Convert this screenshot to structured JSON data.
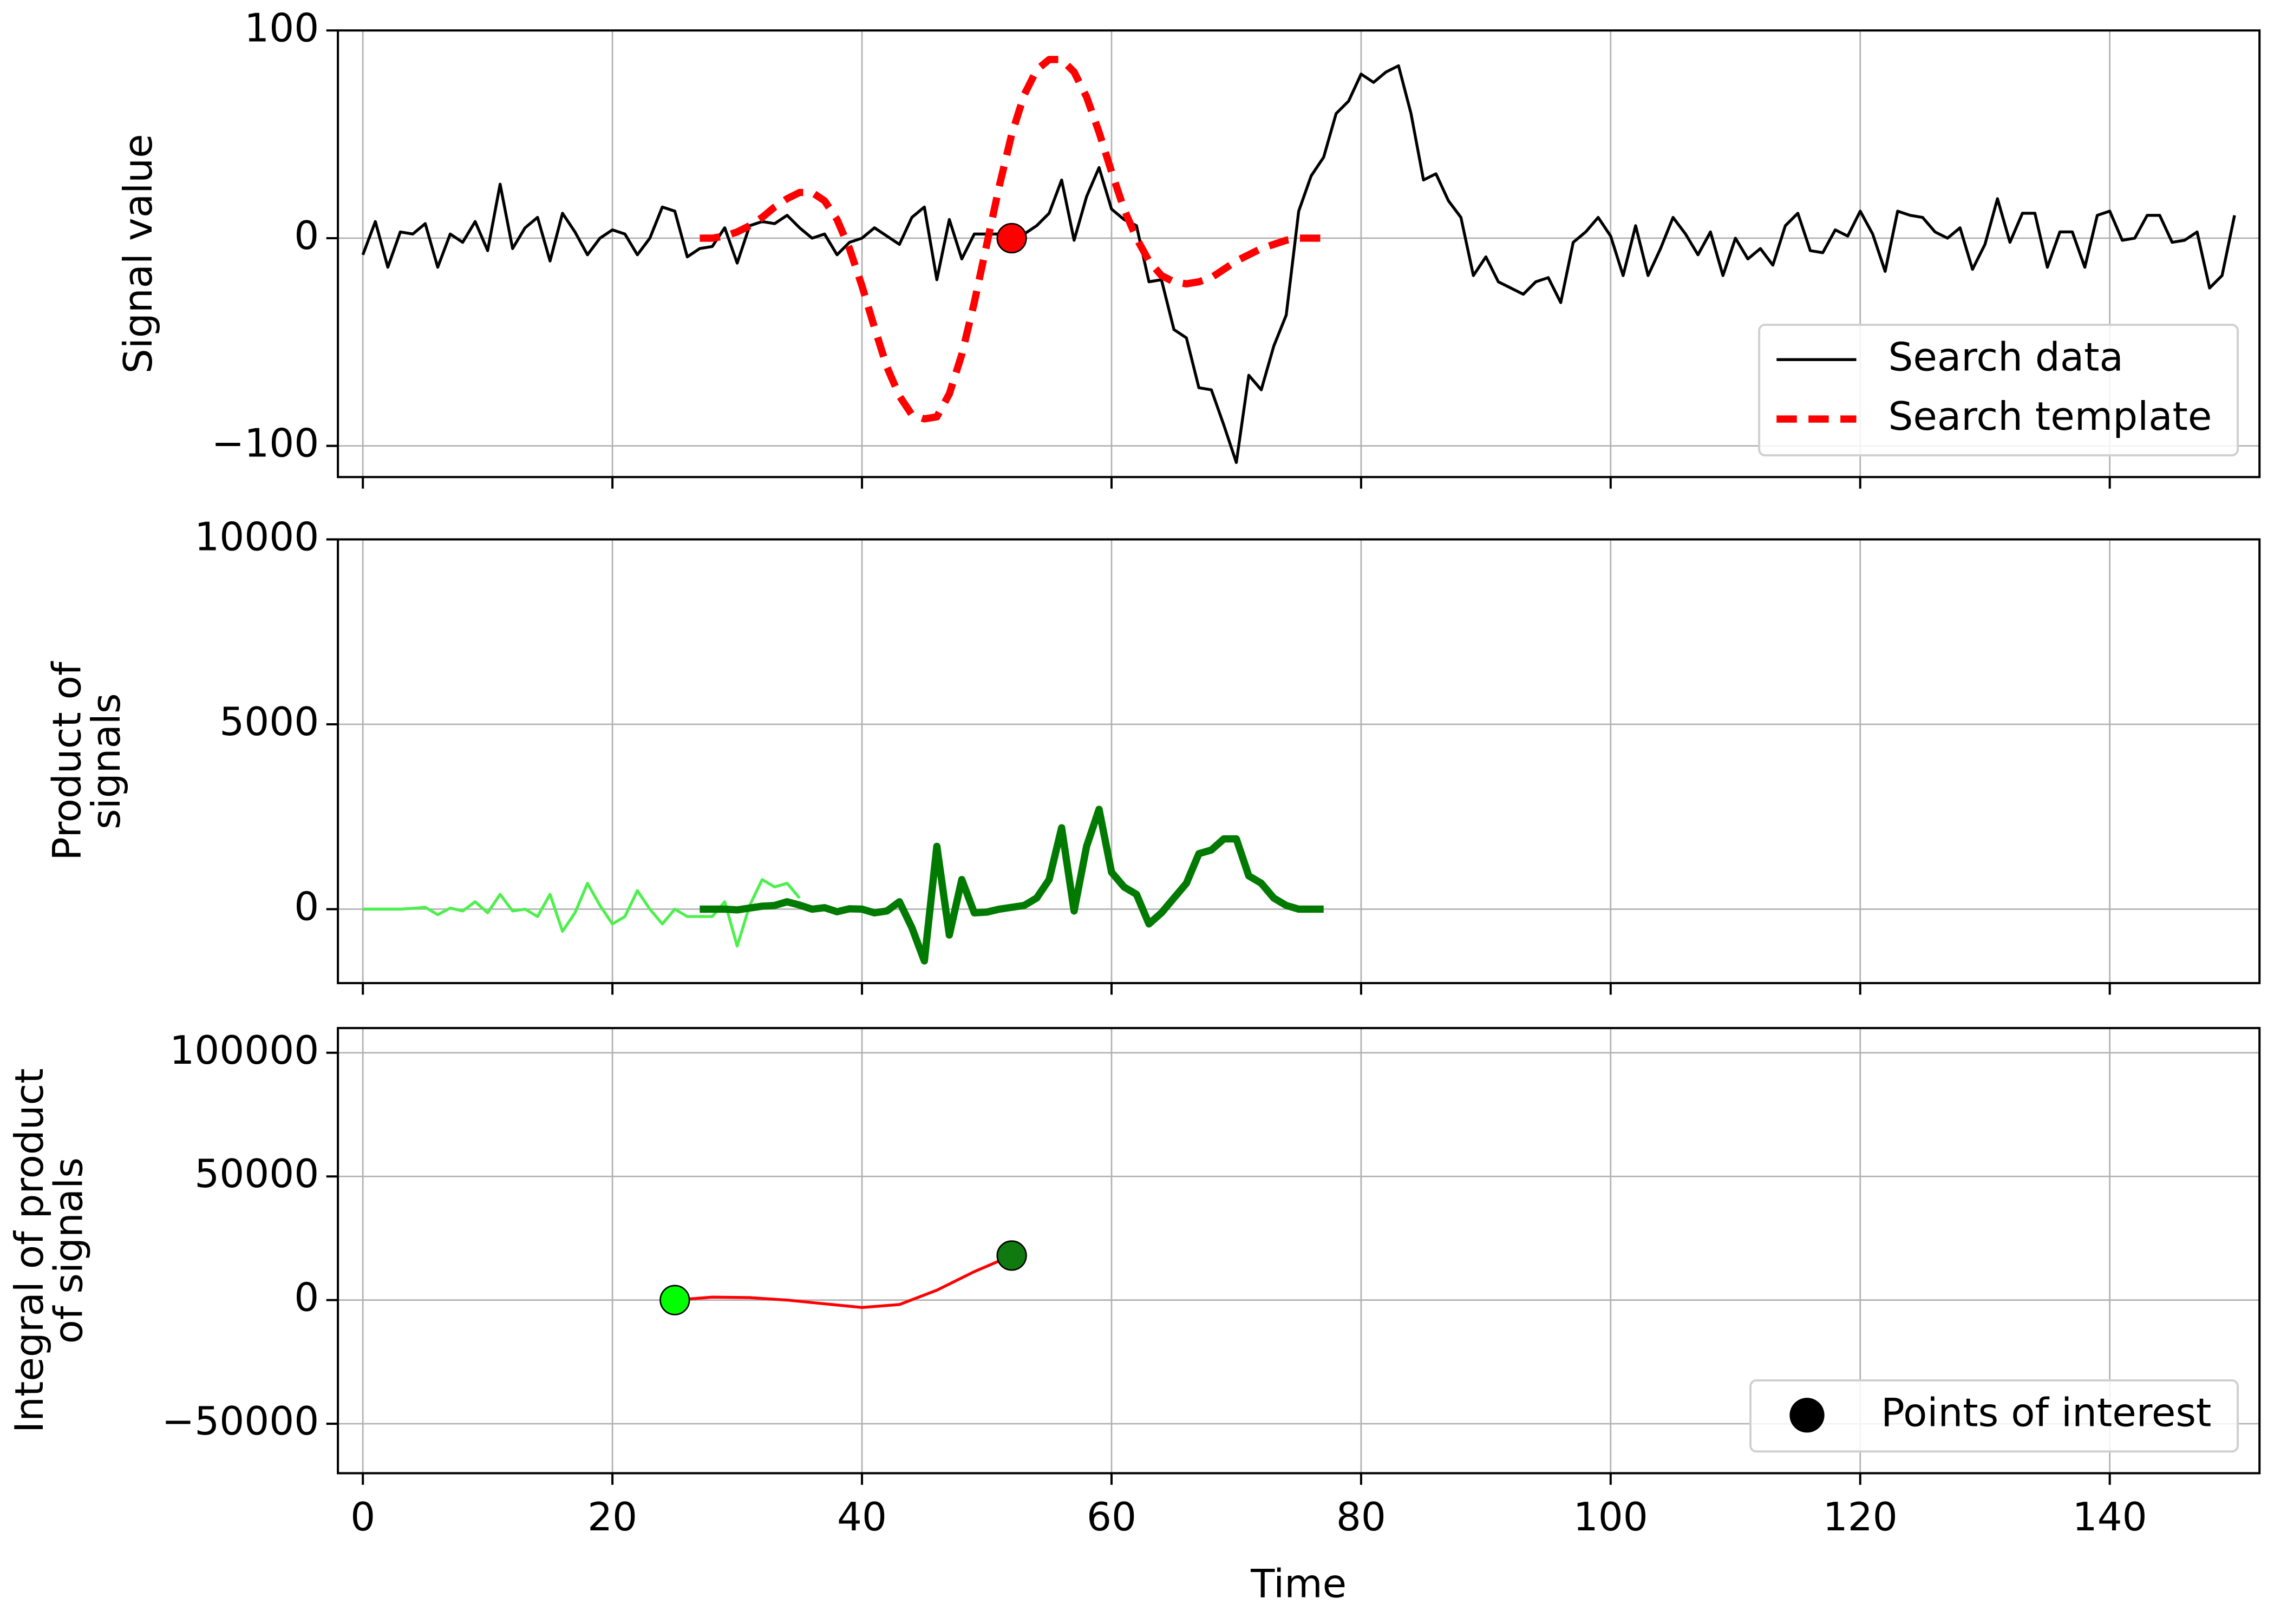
{
  "chart_data": [
    {
      "type": "line",
      "ylabel": [
        "Signal value"
      ],
      "xlim": [
        -2,
        152
      ],
      "ylim": [
        -115,
        100
      ],
      "xticks": [
        0,
        20,
        40,
        60,
        80,
        100,
        120,
        140
      ],
      "yticks": [
        {
          "value": -100,
          "label": "−100"
        },
        0,
        100
      ],
      "grid": true,
      "legend": "lower right",
      "series": [
        {
          "name": "Search data",
          "color": "#000000",
          "linestyle": "solid",
          "x": [
            0,
            1,
            2,
            3,
            4,
            5,
            6,
            7,
            8,
            9,
            10,
            11,
            12,
            13,
            14,
            15,
            16,
            17,
            18,
            19,
            20,
            21,
            22,
            23,
            24,
            25,
            26,
            27,
            28,
            29,
            30,
            31,
            32,
            33,
            34,
            35,
            36,
            37,
            38,
            39,
            40,
            41,
            42,
            43,
            44,
            45,
            46,
            47,
            48,
            49,
            50,
            51,
            52,
            53,
            54,
            55,
            56,
            57,
            58,
            59,
            60,
            61,
            62,
            63,
            64,
            65,
            66,
            67,
            68,
            69,
            70,
            71,
            72,
            73,
            74,
            75,
            76,
            77,
            78,
            79,
            80,
            81,
            82,
            83,
            84,
            85,
            86,
            87,
            88,
            89,
            90,
            91,
            92,
            93,
            94,
            95,
            96,
            97,
            98,
            99,
            100,
            101,
            102,
            103,
            104,
            105,
            106,
            107,
            108,
            109,
            110,
            111,
            112,
            113,
            114,
            115,
            116,
            117,
            118,
            119,
            120,
            121,
            122,
            123,
            124,
            125,
            126,
            127,
            128,
            129,
            130,
            131,
            132,
            133,
            134,
            135,
            136,
            137,
            138,
            139,
            140,
            141,
            142,
            143,
            144,
            145,
            146,
            147,
            148,
            149,
            150
          ],
          "values": [
            -8,
            8,
            -14,
            3,
            2,
            7,
            -14,
            2,
            -2,
            8,
            -6,
            26,
            -5,
            5,
            10,
            -11,
            12,
            3,
            -8,
            0,
            4,
            2,
            -8,
            0,
            15,
            13,
            -9,
            -5,
            -4,
            5,
            -12,
            6,
            8,
            7,
            11,
            5,
            0,
            2,
            -8,
            -2,
            0,
            5,
            1,
            -3,
            10,
            15,
            -20,
            9,
            -10,
            2,
            2,
            2,
            0,
            2,
            6,
            12,
            28,
            -1,
            20,
            34,
            14,
            9,
            6,
            -21,
            -20,
            -44,
            -48,
            -72,
            -73,
            -90,
            -108,
            -66,
            -73,
            -52,
            -37,
            13,
            30,
            39,
            60,
            66,
            79,
            75,
            80,
            83,
            60,
            28,
            31,
            18,
            10,
            -18,
            -9,
            -21,
            -24,
            -27,
            -21,
            -19,
            -31,
            -2,
            3,
            10,
            1,
            -18,
            6,
            -18,
            -5,
            10,
            2,
            -8,
            3,
            -18,
            0,
            -10,
            -5,
            -13,
            6,
            12,
            -6,
            -7,
            4,
            1,
            13,
            2,
            -16,
            13,
            11,
            10,
            3,
            0,
            5,
            -15,
            -3,
            19,
            -2,
            12,
            12,
            -14,
            3,
            3,
            -14,
            11,
            13,
            -1,
            0,
            11,
            11,
            -2,
            -1,
            3,
            -24,
            -18,
            11
          ]
        },
        {
          "name": "Search template",
          "color": "#ff0000",
          "linestyle": "dashed",
          "x": [
            27,
            28,
            29,
            30,
            31,
            32,
            33,
            34,
            35,
            36,
            37,
            38,
            39,
            40,
            41,
            42,
            43,
            44,
            45,
            46,
            47,
            48,
            49,
            50,
            51,
            52,
            53,
            54,
            55,
            56,
            57,
            58,
            59,
            60,
            61,
            62,
            63,
            64,
            65,
            66,
            67,
            68,
            69,
            70,
            71,
            72,
            73,
            74,
            75,
            76,
            77
          ],
          "values": [
            0,
            0,
            1,
            3,
            6,
            10,
            15,
            19,
            22,
            22,
            18,
            9,
            -5,
            -23,
            -43,
            -62,
            -76,
            -85,
            -87,
            -86,
            -75,
            -56,
            -31,
            -3,
            25,
            50,
            69,
            81,
            86,
            86,
            80,
            68,
            51,
            32,
            14,
            0,
            -11,
            -18,
            -21,
            -22,
            -21,
            -19,
            -15,
            -11,
            -8,
            -5,
            -3,
            -1,
            0,
            0,
            0
          ]
        },
        {
          "marker": "circle",
          "x": [
            52
          ],
          "values": [
            0
          ],
          "colors": [
            "#ff0000"
          ]
        }
      ]
    },
    {
      "type": "line",
      "ylabel": [
        "Product of",
        "signals"
      ],
      "xlim": [
        -2,
        152
      ],
      "ylim": [
        -2000,
        10000
      ],
      "xticks": [
        0,
        20,
        40,
        60,
        80,
        100,
        120,
        140
      ],
      "yticks": [
        0,
        5000,
        10000
      ],
      "grid": true,
      "series": [
        {
          "color": "#4cf04c",
          "linestyle": "thin",
          "x": [
            0,
            1,
            2,
            3,
            4,
            5,
            6,
            7,
            8,
            9,
            10,
            11,
            12,
            13,
            14,
            15,
            16,
            17,
            18,
            19,
            20,
            21,
            22,
            23,
            24,
            25,
            26,
            27,
            28,
            29,
            30,
            31,
            32,
            33,
            34,
            35
          ],
          "values": [
            0,
            0,
            0,
            0,
            20,
            50,
            -150,
            30,
            -50,
            200,
            -100,
            400,
            -50,
            0,
            -200,
            400,
            -600,
            -100,
            700,
            100,
            -400,
            -200,
            500,
            0,
            -400,
            0,
            -200,
            -200,
            -200,
            200,
            -1000,
            100,
            800,
            600,
            700,
            300
          ]
        },
        {
          "color": "#007a00",
          "linestyle": "thick",
          "x": [
            27,
            28,
            29,
            30,
            31,
            32,
            33,
            34,
            35,
            36,
            37,
            38,
            39,
            40,
            41,
            42,
            43,
            44,
            45,
            46,
            47,
            48,
            49,
            50,
            51,
            52,
            53,
            54,
            55,
            56,
            57,
            58,
            59,
            60,
            61,
            62,
            63,
            64,
            65,
            66,
            67,
            68,
            69,
            70,
            71,
            72,
            73,
            74,
            75,
            76,
            77
          ],
          "values": [
            0,
            0,
            0,
            -20,
            30,
            80,
            100,
            200,
            110,
            0,
            40,
            -70,
            10,
            0,
            -100,
            -50,
            200,
            -500,
            -1400,
            1700,
            -700,
            800,
            -100,
            -80,
            0,
            50,
            100,
            300,
            800,
            2200,
            -50,
            1700,
            2700,
            1000,
            600,
            400,
            -400,
            -100,
            300,
            700,
            1500,
            1600,
            1900,
            1900,
            900,
            700,
            300,
            100,
            0,
            0,
            0
          ]
        }
      ]
    },
    {
      "type": "line",
      "ylabel": [
        "Integral of product",
        "of signals"
      ],
      "xlabel": "Time",
      "xlim": [
        -2,
        152
      ],
      "ylim": [
        -70000,
        110000
      ],
      "xticks": [
        0,
        20,
        40,
        60,
        80,
        100,
        120,
        140
      ],
      "yticks": [
        {
          "value": -50000,
          "label": "−50000"
        },
        0,
        50000,
        100000
      ],
      "grid": true,
      "legend": "lower right",
      "series": [
        {
          "color": "#ff0000",
          "linestyle": "solid",
          "x": [
            25,
            28,
            31,
            34,
            37,
            40,
            43,
            46,
            49,
            52
          ],
          "values": [
            0,
            1200,
            1000,
            0,
            -1500,
            -3000,
            -1800,
            4000,
            11500,
            18000
          ]
        },
        {
          "name": "Points of interest",
          "marker": "circle",
          "legend_color": "#000000",
          "x": [
            25,
            52
          ],
          "values": [
            0,
            18000
          ],
          "colors": [
            "#00ff00",
            "#107a10"
          ]
        }
      ]
    }
  ]
}
